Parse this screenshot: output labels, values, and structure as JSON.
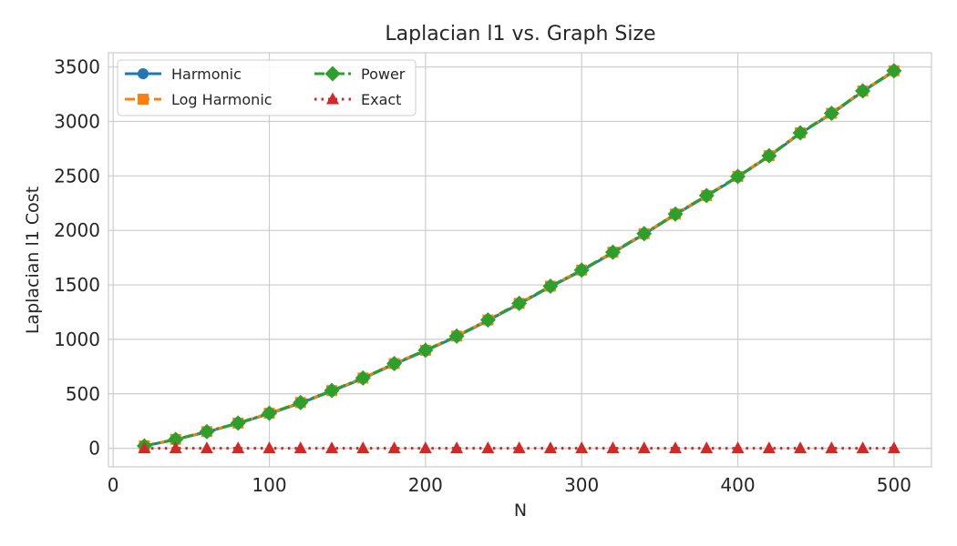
{
  "chart_data": {
    "type": "line",
    "title": "Laplacian l1 vs. Graph Size",
    "xlabel": "N",
    "ylabel": "Laplacian l1 Cost",
    "xlim": [
      -3,
      524
    ],
    "ylim": [
      -170,
      3630
    ],
    "xticks": [
      0,
      100,
      200,
      300,
      400,
      500
    ],
    "yticks": [
      0,
      500,
      1000,
      1500,
      2000,
      2500,
      3000,
      3500
    ],
    "grid": true,
    "legend_placement": "top-left",
    "x": [
      20,
      40,
      60,
      80,
      100,
      120,
      140,
      160,
      180,
      200,
      220,
      240,
      260,
      280,
      300,
      320,
      340,
      360,
      380,
      400,
      420,
      440,
      460,
      480,
      500
    ],
    "series": [
      {
        "name": "Harmonic",
        "color": "#1f77b4",
        "marker": "circle",
        "linestyle": "solid",
        "values": [
          22,
          80,
          150,
          228,
          318,
          415,
          525,
          640,
          772,
          895,
          1025,
          1172,
          1325,
          1482,
          1630,
          1795,
          1965,
          2145,
          2315,
          2490,
          2680,
          2890,
          3070,
          3275,
          3460
        ]
      },
      {
        "name": "Log Harmonic",
        "color": "#ff7f0e",
        "marker": "square",
        "linestyle": "dashed",
        "values": [
          22,
          82,
          153,
          232,
          322,
          420,
          530,
          645,
          778,
          900,
          1030,
          1178,
          1330,
          1488,
          1636,
          1800,
          1970,
          2150,
          2320,
          2495,
          2685,
          2895,
          3075,
          3280,
          3465
        ]
      },
      {
        "name": "Power",
        "color": "#2ca02c",
        "marker": "diamond",
        "linestyle": "dashdot",
        "values": [
          22,
          82,
          153,
          232,
          322,
          420,
          530,
          645,
          778,
          900,
          1030,
          1178,
          1330,
          1488,
          1636,
          1800,
          1970,
          2150,
          2320,
          2495,
          2685,
          2895,
          3075,
          3280,
          3465
        ]
      },
      {
        "name": "Exact",
        "color": "#d62728",
        "marker": "triangle",
        "linestyle": "dotted",
        "values": [
          0,
          0,
          0,
          0,
          0,
          0,
          0,
          0,
          0,
          0,
          0,
          0,
          0,
          0,
          0,
          0,
          0,
          0,
          0,
          0,
          0,
          0,
          0,
          0,
          0
        ]
      }
    ]
  }
}
